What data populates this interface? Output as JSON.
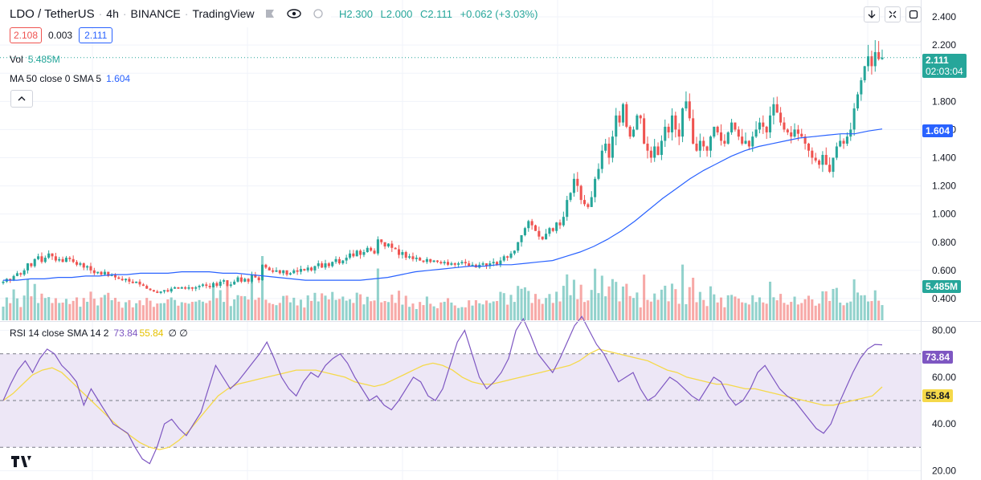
{
  "header": {
    "symbol": "LDO / TetherUS",
    "interval": "4h",
    "exchange": "BINANCE",
    "platform": "TradingView",
    "ohlc": {
      "o_label": "",
      "h": "H2.300",
      "l": "L2.000",
      "c": "C2.111",
      "change": "+0.062 (+3.03%)"
    }
  },
  "quote": {
    "bid": "2.108",
    "spread": "0.003",
    "ask": "2.111"
  },
  "legend": {
    "volume_label": "Vol",
    "volume_value": "5.485M",
    "ma_label": "MA 50 close 0 SMA 5",
    "ma_value": "1.604",
    "rsi_label": "RSI 14 close SMA 14 2",
    "rsi_value": "73.84",
    "rsi_sma_value": "55.84",
    "rsi_extra": "∅ ∅"
  },
  "price_tags": {
    "price": "2.111",
    "countdown": "02:03:04",
    "ma": "1.604",
    "volume": "5.485M",
    "rsi": "73.84",
    "rsi_sma": "55.84"
  },
  "colors": {
    "up": "#26a69a",
    "down": "#ef5350",
    "ma": "#2962ff",
    "rsi": "#7e57c2",
    "rsi_sma": "#f5d94a",
    "rsi_band": "#ede7f6"
  },
  "icons": [
    "eye-icon",
    "flag-icon",
    "arrow-down-icon",
    "collapse-icon",
    "fullscreen-icon",
    "chevron-up-icon",
    "tradingview-logo-icon"
  ],
  "chart_data": [
    {
      "type": "candlestick",
      "title": "LDO / TetherUS · 4h · BINANCE",
      "y_ticks": [
        "0.400",
        "0.600",
        "0.800",
        "1.000",
        "1.200",
        "1.400",
        "1.600",
        "1.800",
        "2.000",
        "2.200",
        "2.400"
      ],
      "ylim": [
        0.24,
        2.52
      ],
      "grid": true,
      "closes": [
        0.52,
        0.54,
        0.53,
        0.56,
        0.58,
        0.57,
        0.6,
        0.65,
        0.63,
        0.68,
        0.7,
        0.66,
        0.69,
        0.72,
        0.7,
        0.67,
        0.68,
        0.66,
        0.69,
        0.68,
        0.66,
        0.64,
        0.65,
        0.62,
        0.63,
        0.6,
        0.58,
        0.59,
        0.57,
        0.59,
        0.56,
        0.57,
        0.55,
        0.54,
        0.53,
        0.54,
        0.52,
        0.51,
        0.52,
        0.5,
        0.49,
        0.47,
        0.46,
        0.45,
        0.44,
        0.45,
        0.46,
        0.45,
        0.47,
        0.48,
        0.47,
        0.48,
        0.47,
        0.48,
        0.47,
        0.48,
        0.49,
        0.5,
        0.49,
        0.48,
        0.51,
        0.49,
        0.52,
        0.53,
        0.49,
        0.5,
        0.52,
        0.55,
        0.52,
        0.54,
        0.52,
        0.57,
        0.55,
        0.53,
        0.64,
        0.62,
        0.6,
        0.59,
        0.6,
        0.58,
        0.6,
        0.57,
        0.58,
        0.6,
        0.59,
        0.61,
        0.6,
        0.62,
        0.6,
        0.63,
        0.65,
        0.62,
        0.65,
        0.63,
        0.66,
        0.68,
        0.65,
        0.67,
        0.69,
        0.72,
        0.7,
        0.74,
        0.71,
        0.73,
        0.76,
        0.74,
        0.72,
        0.82,
        0.8,
        0.77,
        0.79,
        0.76,
        0.75,
        0.71,
        0.73,
        0.69,
        0.7,
        0.68,
        0.69,
        0.67,
        0.66,
        0.68,
        0.66,
        0.67,
        0.66,
        0.65,
        0.66,
        0.64,
        0.65,
        0.64,
        0.65,
        0.66,
        0.65,
        0.63,
        0.64,
        0.62,
        0.64,
        0.65,
        0.63,
        0.65,
        0.66,
        0.64,
        0.67,
        0.7,
        0.69,
        0.72,
        0.74,
        0.8,
        0.85,
        0.9,
        0.95,
        0.92,
        0.88,
        0.84,
        0.82,
        0.86,
        0.9,
        0.88,
        0.94,
        0.92,
        0.98,
        1.1,
        1.15,
        1.25,
        1.2,
        1.1,
        1.07,
        1.05,
        1.12,
        1.25,
        1.32,
        1.45,
        1.5,
        1.4,
        1.55,
        1.7,
        1.65,
        1.78,
        1.62,
        1.55,
        1.6,
        1.7,
        1.68,
        1.5,
        1.45,
        1.4,
        1.48,
        1.42,
        1.52,
        1.62,
        1.58,
        1.7,
        1.6,
        1.55,
        1.75,
        1.8,
        1.68,
        1.5,
        1.45,
        1.52,
        1.48,
        1.45,
        1.55,
        1.62,
        1.58,
        1.52,
        1.5,
        1.58,
        1.65,
        1.6,
        1.55,
        1.5,
        1.52,
        1.48,
        1.55,
        1.6,
        1.65,
        1.62,
        1.58,
        1.7,
        1.78,
        1.72,
        1.65,
        1.6,
        1.58,
        1.55,
        1.6,
        1.57,
        1.55,
        1.5,
        1.45,
        1.4,
        1.38,
        1.35,
        1.42,
        1.35,
        1.3,
        1.4,
        1.48,
        1.52,
        1.5,
        1.55,
        1.6,
        1.75,
        1.85,
        1.95,
        2.05,
        2.12,
        2.05,
        2.15,
        2.1,
        2.111
      ],
      "ma50": [
        0.53,
        0.53,
        0.54,
        0.54,
        0.55,
        0.55,
        0.56,
        0.56,
        0.57,
        0.57,
        0.58,
        0.58,
        0.58,
        0.59,
        0.59,
        0.59,
        0.58,
        0.58,
        0.57,
        0.56,
        0.55,
        0.54,
        0.53,
        0.53,
        0.53,
        0.53,
        0.53,
        0.54,
        0.55,
        0.57,
        0.59,
        0.6,
        0.61,
        0.62,
        0.63,
        0.63,
        0.64,
        0.64,
        0.65,
        0.66,
        0.67,
        0.7,
        0.73,
        0.77,
        0.82,
        0.88,
        0.95,
        1.03,
        1.11,
        1.18,
        1.25,
        1.31,
        1.36,
        1.41,
        1.45,
        1.48,
        1.5,
        1.52,
        1.54,
        1.55,
        1.56,
        1.57,
        1.57,
        1.59,
        1.604
      ],
      "rsi": [
        50,
        57,
        63,
        67,
        62,
        68,
        72,
        70,
        65,
        62,
        58,
        48,
        55,
        50,
        45,
        40,
        38,
        36,
        30,
        25,
        23,
        30,
        40,
        42,
        38,
        35,
        40,
        45,
        55,
        65,
        60,
        55,
        58,
        62,
        66,
        70,
        75,
        68,
        60,
        55,
        52,
        58,
        62,
        60,
        65,
        68,
        70,
        66,
        60,
        55,
        50,
        52,
        48,
        46,
        50,
        55,
        60,
        58,
        52,
        50,
        55,
        65,
        75,
        80,
        70,
        60,
        55,
        58,
        62,
        68,
        80,
        85,
        78,
        70,
        66,
        62,
        68,
        75,
        82,
        86,
        80,
        74,
        70,
        64,
        58,
        60,
        62,
        55,
        50,
        52,
        56,
        60,
        58,
        55,
        52,
        50,
        55,
        60,
        58,
        52,
        48,
        50,
        55,
        62,
        65,
        60,
        55,
        52,
        50,
        46,
        42,
        38,
        36,
        40,
        48,
        55,
        62,
        68,
        72,
        74,
        73.84
      ],
      "rsi_sma": [
        50,
        53,
        57,
        61,
        63,
        64,
        62,
        58,
        54,
        50,
        46,
        42,
        38,
        35,
        32,
        30,
        29,
        30,
        33,
        37,
        42,
        47,
        52,
        55,
        57,
        58,
        59,
        60,
        61,
        62,
        63,
        63,
        63,
        62,
        61,
        60,
        58,
        57,
        56,
        57,
        59,
        61,
        63,
        65,
        66,
        65,
        63,
        60,
        58,
        57,
        57,
        58,
        59,
        60,
        61,
        62,
        63,
        64,
        65,
        67,
        70,
        72,
        71,
        70,
        69,
        68,
        67,
        65,
        63,
        62,
        60,
        59,
        58,
        57,
        57,
        56,
        55,
        55,
        54,
        53,
        52,
        51,
        50,
        49,
        48,
        48,
        49,
        50,
        51,
        52,
        55.84
      ],
      "volume_tag": "5.485M",
      "ma_tag": "1.604"
    },
    {
      "type": "line",
      "title": "RSI 14 close SMA 14 2",
      "y_ticks": [
        "20.00",
        "40.00",
        "60.00",
        "80.00"
      ],
      "ylim": [
        16,
        84
      ],
      "bands": [
        30,
        50,
        70
      ],
      "grid": true
    }
  ]
}
